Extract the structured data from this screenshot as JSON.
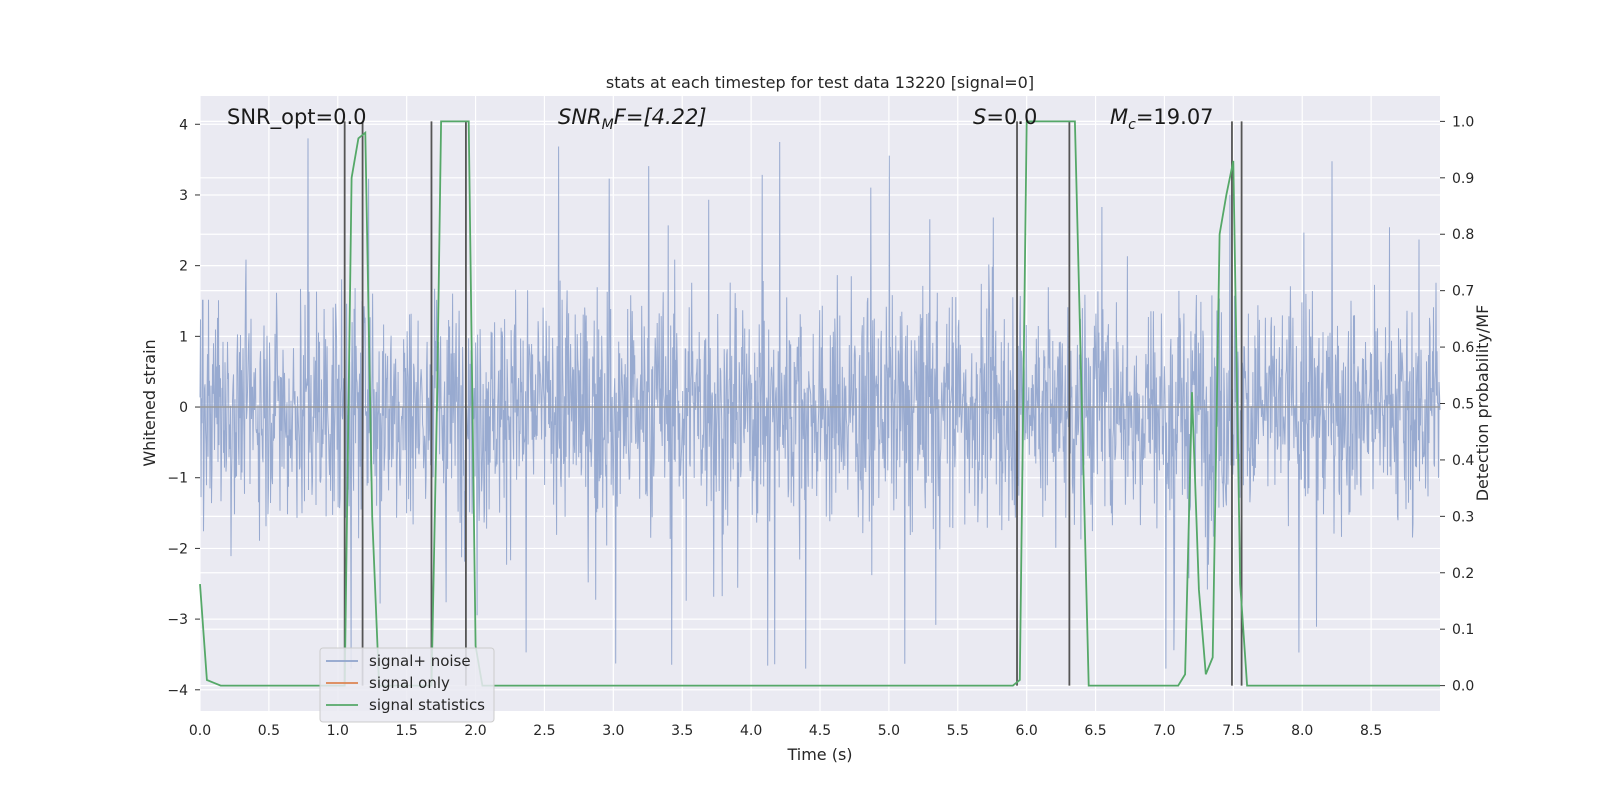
{
  "chart_data": {
    "type": "line",
    "title": "stats at each timestep for test data 13220 [signal=0]",
    "xlabel": "Time (s)",
    "ylabel": "Whitened strain",
    "y2label": "Detection probability/MF",
    "xlim": [
      0,
      9.0
    ],
    "ylim": [
      -4.3,
      4.4
    ],
    "y2lim": [
      -0.045,
      1.045
    ],
    "xticks": [
      "0.0",
      "0.5",
      "1.0",
      "1.5",
      "2.0",
      "2.5",
      "3.0",
      "3.5",
      "4.0",
      "4.5",
      "5.0",
      "5.5",
      "6.0",
      "6.5",
      "7.0",
      "7.5",
      "8.0",
      "8.5"
    ],
    "yticks": [
      "4",
      "3",
      "2",
      "1",
      "0",
      "−1",
      "−2",
      "−3",
      "−4"
    ],
    "y2ticks": [
      "1.0",
      "0.9",
      "0.8",
      "0.7",
      "0.6",
      "0.5",
      "0.4",
      "0.3",
      "0.2",
      "0.1",
      "0.0"
    ],
    "annotations": {
      "snr_opt": "SNR_opt=0.0",
      "snr_mf_main": "SNR",
      "snr_mf_sub": "M",
      "snr_mf_rest": "F=[4.22]",
      "s_main": "S",
      "s_rest": "=0.0",
      "mc_main": "M",
      "mc_sub": "c",
      "mc_rest": "=19.07"
    },
    "legend": {
      "placement": "lower-left",
      "entries": [
        "signal+ noise",
        "signal only",
        "signal statistics"
      ]
    },
    "colors": {
      "noise": "#8fa3cc",
      "signal_only": "#dd8452",
      "stats": "#55a868",
      "vlines": "#555555",
      "plot_bg": "#eaeaf2"
    },
    "series": [
      {
        "name": "signal+ noise",
        "description_values": "whitened strain noise, mostly within ±1.6, spikes to about 4.0 and −3.6"
      },
      {
        "name": "signal only",
        "values": [
          0
        ]
      },
      {
        "name": "signal statistics",
        "x": [
          0.0,
          0.05,
          0.1,
          0.15,
          0.5,
          1.0,
          1.05,
          1.1,
          1.15,
          1.2,
          1.25,
          1.3,
          1.6,
          1.68,
          1.72,
          1.75,
          1.8,
          1.9,
          1.95,
          2.0,
          2.05,
          2.1,
          5.8,
          5.9,
          5.95,
          6.0,
          6.1,
          6.3,
          6.35,
          6.4,
          6.45,
          6.5,
          7.0,
          7.1,
          7.15,
          7.2,
          7.25,
          7.3,
          7.35,
          7.4,
          7.45,
          7.5,
          7.55,
          7.6,
          7.65,
          7.7,
          7.8,
          8.0,
          9.0
        ],
        "values": [
          0.18,
          0.01,
          0.005,
          0.0,
          0.0,
          0.0,
          0.0,
          0.9,
          0.97,
          0.98,
          0.3,
          0.0,
          0.0,
          0.0,
          0.5,
          1.0,
          1.0,
          1.0,
          1.0,
          0.07,
          0.0,
          0.0,
          0.0,
          0.0,
          0.01,
          1.0,
          1.0,
          1.0,
          1.0,
          0.5,
          0.0,
          0.0,
          0.0,
          0.0,
          0.02,
          0.52,
          0.17,
          0.02,
          0.05,
          0.8,
          0.87,
          0.93,
          0.18,
          0.0,
          0.0,
          0.0,
          0.0,
          0.0,
          0.0
        ]
      }
    ],
    "vlines_x": [
      1.05,
      1.18,
      1.68,
      1.93,
      5.93,
      6.31,
      7.49,
      7.56
    ]
  }
}
